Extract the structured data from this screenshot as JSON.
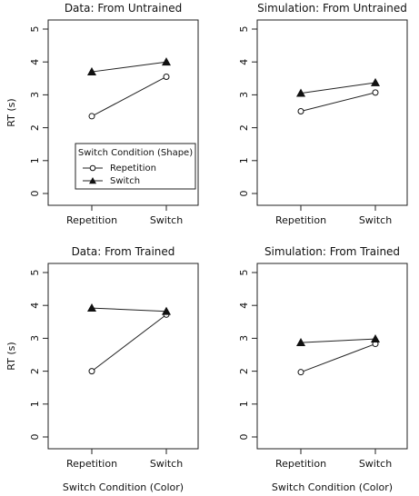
{
  "chart_data": [
    {
      "type": "line",
      "title": "Data: From Untrained",
      "xlabel": "",
      "ylabel": "RT (s)",
      "categories": [
        "Repetition",
        "Switch"
      ],
      "ylim": [
        0,
        5
      ],
      "yticks": [
        "0",
        "1",
        "2",
        "3",
        "4",
        "5"
      ],
      "series": [
        {
          "name": "Repetition",
          "marker": "circle-open",
          "values": [
            2.35,
            3.55
          ]
        },
        {
          "name": "Switch",
          "marker": "triangle-filled",
          "values": [
            3.7,
            4.0
          ]
        }
      ],
      "legend": {
        "title": "Switch Condition (Shape)",
        "placement": "bottom-center"
      }
    },
    {
      "type": "line",
      "title": "Simulation: From Untrained",
      "xlabel": "",
      "ylabel": "",
      "categories": [
        "Repetition",
        "Switch"
      ],
      "ylim": [
        0,
        5
      ],
      "yticks": [
        "0",
        "1",
        "2",
        "3",
        "4",
        "5"
      ],
      "series": [
        {
          "name": "Repetition",
          "marker": "circle-open",
          "values": [
            2.5,
            3.07
          ]
        },
        {
          "name": "Switch",
          "marker": "triangle-filled",
          "values": [
            3.05,
            3.37
          ]
        }
      ]
    },
    {
      "type": "line",
      "title": "Data: From Trained",
      "xlabel": "Switch Condition (Color)",
      "ylabel": "RT (s)",
      "categories": [
        "Repetition",
        "Switch"
      ],
      "ylim": [
        0,
        5
      ],
      "yticks": [
        "0",
        "1",
        "2",
        "3",
        "4",
        "5"
      ],
      "series": [
        {
          "name": "Repetition",
          "marker": "circle-open",
          "values": [
            2.0,
            3.72
          ]
        },
        {
          "name": "Switch",
          "marker": "triangle-filled",
          "values": [
            3.92,
            3.82
          ]
        }
      ]
    },
    {
      "type": "line",
      "title": "Simulation: From Trained",
      "xlabel": "Switch Condition (Color)",
      "ylabel": "",
      "categories": [
        "Repetition",
        "Switch"
      ],
      "ylim": [
        0,
        5
      ],
      "yticks": [
        "0",
        "1",
        "2",
        "3",
        "4",
        "5"
      ],
      "series": [
        {
          "name": "Repetition",
          "marker": "circle-open",
          "values": [
            1.97,
            2.83
          ]
        },
        {
          "name": "Switch",
          "marker": "triangle-filled",
          "values": [
            2.87,
            2.98
          ]
        }
      ]
    }
  ]
}
